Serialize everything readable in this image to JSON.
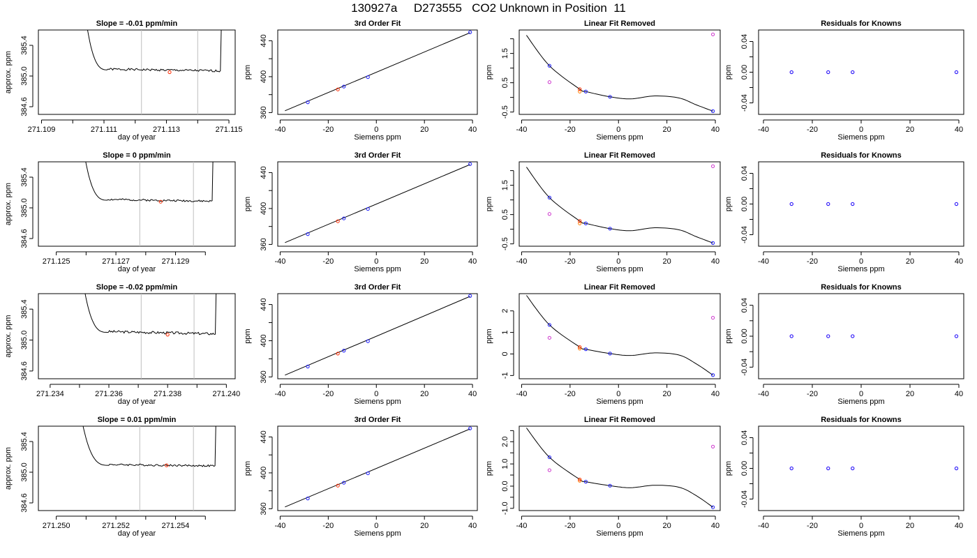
{
  "figure_title": "130927a     D273555   CO2 Unknown in Position  11",
  "colors": {
    "trace": "#000000",
    "vline": "#bebebe",
    "red": "#ff2a00",
    "blue": "#1a1aff",
    "magenta": "#cc33cc",
    "orange": "#ff8000"
  },
  "rows": [
    {
      "left": {
        "title": "Slope =  -0.01  ppm/min",
        "xlabel": "day of year",
        "ylabel": "approx. ppm",
        "xlim": [
          271.1089,
          271.1152
        ],
        "ylim": [
          384.5,
          385.6
        ],
        "xticks": [
          271.109,
          271.11,
          271.111,
          271.112,
          271.113,
          271.114,
          271.115
        ],
        "xtick_labels": [
          "271.109",
          "",
          "271.111",
          "",
          "271.113",
          "",
          "271.115"
        ],
        "yticks": [
          384.6,
          385.0,
          385.4
        ],
        "ytick_labels": [
          "384.6",
          "385.0",
          "385.4"
        ],
        "vlines": [
          271.1122,
          271.114
        ],
        "trace": {
          "start": 271.1104,
          "end": 271.1148,
          "plateau_start": 271.1106,
          "baseline": 385.08,
          "lo_value": 385.04,
          "hi_value": 385.12,
          "seed": 1
        },
        "marker": {
          "x": 271.1131,
          "y": 385.05
        }
      },
      "fit": {
        "title": "3rd Order Fit",
        "xlabel": "Siemens ppm",
        "ylabel": "ppm",
        "xlim": [
          -41,
          42
        ],
        "ylim": [
          358,
          452
        ],
        "xticks": [
          -40,
          -20,
          0,
          20,
          40
        ],
        "yticks": [
          360,
          400,
          440
        ],
        "ytick_minor": [
          380,
          420
        ],
        "line": [
          [
            -38,
            362
          ],
          [
            39,
            449
          ]
        ],
        "points_blue": [
          [
            -28.5,
            371.5
          ],
          [
            -13.5,
            389
          ],
          [
            -3.5,
            399.5
          ],
          [
            39,
            449.5
          ]
        ],
        "point_red": [
          -16,
          385.8
        ]
      },
      "lin": {
        "title": "Linear Fit Removed",
        "xlabel": "Siemens ppm",
        "ylabel": "ppm",
        "xlim": [
          -41,
          42
        ],
        "ylim": [
          -0.58,
          2.3
        ],
        "xticks": [
          -40,
          -20,
          0,
          20,
          40
        ],
        "yticks": [
          -0.5,
          0.5,
          1.5
        ],
        "ytick_minor": [
          0,
          1,
          2
        ],
        "ytick_labels": [
          "-0.5",
          "0.5",
          "1.5"
        ],
        "curve": [
          [
            -38,
            2.12
          ],
          [
            -28.5,
            1.08
          ],
          [
            -16,
            0.28
          ],
          [
            -13.5,
            0.2
          ],
          [
            -3.5,
            0.02
          ],
          [
            5,
            -0.05
          ],
          [
            15,
            0.05
          ],
          [
            25,
            -0.02
          ],
          [
            32,
            -0.25
          ],
          [
            39,
            -0.47
          ]
        ],
        "points_blue": [
          [
            -28.5,
            1.08
          ],
          [
            -13.5,
            0.2
          ],
          [
            -3.5,
            0.02
          ],
          [
            39,
            -0.47
          ]
        ],
        "points_magenta": [
          [
            -28.5,
            0.52
          ],
          [
            39,
            2.15
          ]
        ],
        "point_red": [
          -16,
          0.28
        ],
        "point_orange": [
          -16,
          0.2
        ]
      },
      "res": {
        "title": "Residuals for Knowns",
        "xlabel": "Siemens ppm",
        "ylabel": "ppm",
        "xlim": [
          -42,
          42
        ],
        "ylim": [
          -0.055,
          0.055
        ],
        "xticks": [
          -40,
          -20,
          0,
          20,
          40
        ],
        "yticks": [
          -0.04,
          0.0,
          0.04
        ],
        "ytick_minor": [
          -0.02,
          0.02
        ],
        "ytick_labels": [
          "-0.04",
          "0.00",
          "0.04"
        ],
        "points": [
          [
            -28.5,
            0
          ],
          [
            -13.5,
            0
          ],
          [
            -3.5,
            0
          ],
          [
            39,
            0
          ]
        ]
      }
    },
    {
      "left": {
        "title": "Slope =  0  ppm/min",
        "xlabel": "day of year",
        "ylabel": "approx. ppm",
        "xlim": [
          271.1244,
          271.131
        ],
        "ylim": [
          384.5,
          385.6
        ],
        "xticks": [
          271.125,
          271.126,
          271.127,
          271.128,
          271.129,
          271.13
        ],
        "xtick_labels": [
          "271.125",
          "",
          "271.127",
          "",
          "271.129",
          ""
        ],
        "yticks": [
          384.6,
          385.0,
          385.4
        ],
        "ytick_labels": [
          "384.6",
          "385.0",
          "385.4"
        ],
        "vlines": [
          271.1278,
          271.1296
        ],
        "trace": {
          "start": 271.1259,
          "end": 271.1303,
          "plateau_start": 271.1262,
          "baseline": 385.1,
          "lo_value": 385.06,
          "hi_value": 385.13,
          "seed": 2
        },
        "marker": {
          "x": 271.1285,
          "y": 385.08
        }
      },
      "fit": {
        "title": "3rd Order Fit",
        "xlabel": "Siemens ppm",
        "ylabel": "ppm",
        "xlim": [
          -41,
          42
        ],
        "ylim": [
          358,
          452
        ],
        "xticks": [
          -40,
          -20,
          0,
          20,
          40
        ],
        "yticks": [
          360,
          400,
          440
        ],
        "ytick_minor": [
          380,
          420
        ],
        "line": [
          [
            -38,
            362
          ],
          [
            39,
            449
          ]
        ],
        "points_blue": [
          [
            -28.5,
            371.5
          ],
          [
            -13.5,
            389
          ],
          [
            -3.5,
            399.5
          ],
          [
            39,
            449.5
          ]
        ],
        "point_red": [
          -16,
          385.8
        ]
      },
      "lin": {
        "title": "Linear Fit Removed",
        "xlabel": "Siemens ppm",
        "ylabel": "ppm",
        "xlim": [
          -41,
          42
        ],
        "ylim": [
          -0.58,
          2.3
        ],
        "xticks": [
          -40,
          -20,
          0,
          20,
          40
        ],
        "yticks": [
          -0.5,
          0.5,
          1.5
        ],
        "ytick_minor": [
          0,
          1,
          2
        ],
        "ytick_labels": [
          "-0.5",
          "0.5",
          "1.5"
        ],
        "curve": [
          [
            -38,
            2.12
          ],
          [
            -28.5,
            1.08
          ],
          [
            -16,
            0.28
          ],
          [
            -13.5,
            0.2
          ],
          [
            -3.5,
            0.02
          ],
          [
            5,
            -0.05
          ],
          [
            15,
            0.05
          ],
          [
            25,
            -0.02
          ],
          [
            32,
            -0.25
          ],
          [
            39,
            -0.47
          ]
        ],
        "points_blue": [
          [
            -28.5,
            1.08
          ],
          [
            -13.5,
            0.2
          ],
          [
            -3.5,
            0.02
          ],
          [
            39,
            -0.47
          ]
        ],
        "points_magenta": [
          [
            -28.5,
            0.52
          ],
          [
            39,
            2.15
          ]
        ],
        "point_red": [
          -16,
          0.28
        ],
        "point_orange": [
          -16,
          0.2
        ]
      },
      "res": {
        "title": "Residuals for Knowns",
        "xlabel": "Siemens ppm",
        "ylabel": "ppm",
        "xlim": [
          -42,
          42
        ],
        "ylim": [
          -0.055,
          0.055
        ],
        "xticks": [
          -40,
          -20,
          0,
          20,
          40
        ],
        "yticks": [
          -0.04,
          0.0,
          0.04
        ],
        "ytick_minor": [
          -0.02,
          0.02
        ],
        "ytick_labels": [
          "-0.04",
          "0.00",
          "0.04"
        ],
        "points": [
          [
            -28.5,
            0
          ],
          [
            -13.5,
            0
          ],
          [
            -3.5,
            0
          ],
          [
            39,
            0
          ]
        ]
      }
    },
    {
      "left": {
        "title": "Slope =  -0.02  ppm/min",
        "xlabel": "day of year",
        "ylabel": "approx. ppm",
        "xlim": [
          271.2336,
          271.2403
        ],
        "ylim": [
          384.5,
          385.6
        ],
        "xticks": [
          271.234,
          271.235,
          271.236,
          271.237,
          271.238,
          271.239,
          271.24
        ],
        "xtick_labels": [
          "271.234",
          "",
          "271.236",
          "",
          "271.238",
          "",
          "271.240"
        ],
        "yticks": [
          384.6,
          385.0,
          385.4
        ],
        "ytick_labels": [
          "384.6",
          "385.0",
          "385.4"
        ],
        "vlines": [
          271.2371,
          271.2389
        ],
        "trace": {
          "start": 271.2351,
          "end": 271.2397,
          "plateau_start": 271.2354,
          "baseline": 385.1,
          "lo_value": 385.05,
          "hi_value": 385.14,
          "seed": 3
        },
        "marker": {
          "x": 271.238,
          "y": 385.07
        }
      },
      "fit": {
        "title": "3rd Order Fit",
        "xlabel": "Siemens ppm",
        "ylabel": "ppm",
        "xlim": [
          -41,
          42
        ],
        "ylim": [
          358,
          452
        ],
        "xticks": [
          -40,
          -20,
          0,
          20,
          40
        ],
        "yticks": [
          360,
          400,
          440
        ],
        "ytick_minor": [
          380,
          420
        ],
        "line": [
          [
            -38,
            362
          ],
          [
            39,
            449
          ]
        ],
        "points_blue": [
          [
            -28.5,
            371.5
          ],
          [
            -13.5,
            389
          ],
          [
            -3.5,
            399.5
          ],
          [
            39,
            449.5
          ]
        ],
        "point_red": [
          -16,
          385.8
        ]
      },
      "lin": {
        "title": "Linear Fit Removed",
        "xlabel": "Siemens ppm",
        "ylabel": "ppm",
        "xlim": [
          -41,
          42
        ],
        "ylim": [
          -1.15,
          2.8
        ],
        "xticks": [
          -40,
          -20,
          0,
          20,
          40
        ],
        "yticks": [
          -1,
          0,
          1,
          2
        ],
        "ytick_minor": [],
        "ytick_labels": [
          "-1",
          "0",
          "1",
          "2"
        ],
        "curve": [
          [
            -38,
            2.72
          ],
          [
            -28.5,
            1.35
          ],
          [
            -16,
            0.32
          ],
          [
            -13.5,
            0.22
          ],
          [
            -3.5,
            0.02
          ],
          [
            5,
            -0.07
          ],
          [
            15,
            0.05
          ],
          [
            25,
            -0.05
          ],
          [
            32,
            -0.45
          ],
          [
            39,
            -0.98
          ]
        ],
        "points_blue": [
          [
            -28.5,
            1.35
          ],
          [
            -13.5,
            0.22
          ],
          [
            -3.5,
            0.02
          ],
          [
            39,
            -0.98
          ]
        ],
        "points_magenta": [
          [
            -28.5,
            0.75
          ],
          [
            39,
            1.68
          ]
        ],
        "point_red": [
          -16,
          0.32
        ],
        "point_orange": [
          -16,
          0.25
        ]
      },
      "res": {
        "title": "Residuals for Knowns",
        "xlabel": "Siemens ppm",
        "ylabel": "ppm",
        "xlim": [
          -42,
          42
        ],
        "ylim": [
          -0.055,
          0.055
        ],
        "xticks": [
          -40,
          -20,
          0,
          20,
          40
        ],
        "yticks": [
          -0.04,
          0.0,
          0.04
        ],
        "ytick_minor": [
          -0.02,
          0.02
        ],
        "ytick_labels": [
          "-0.04",
          "0.00",
          "0.04"
        ],
        "points": [
          [
            -28.5,
            0
          ],
          [
            -13.5,
            0
          ],
          [
            -3.5,
            0
          ],
          [
            39,
            0
          ]
        ]
      }
    },
    {
      "left": {
        "title": "Slope =  0.01  ppm/min",
        "xlabel": "day of year",
        "ylabel": "approx. ppm",
        "xlim": [
          271.2494,
          271.256
        ],
        "ylim": [
          384.5,
          385.6
        ],
        "xticks": [
          271.25,
          271.251,
          271.252,
          271.253,
          271.254,
          271.255
        ],
        "xtick_labels": [
          "271.250",
          "",
          "271.252",
          "",
          "271.254",
          ""
        ],
        "yticks": [
          384.6,
          385.0,
          385.4
        ],
        "ytick_labels": [
          "384.6",
          "385.0",
          "385.4"
        ],
        "vlines": [
          271.2528,
          271.2546
        ],
        "trace": {
          "start": 271.2508,
          "end": 271.2554,
          "plateau_start": 271.2512,
          "baseline": 385.09,
          "lo_value": 385.06,
          "hi_value": 385.13,
          "seed": 4
        },
        "marker": {
          "x": 271.2537,
          "y": 385.09
        }
      },
      "fit": {
        "title": "3rd Order Fit",
        "xlabel": "Siemens ppm",
        "ylabel": "ppm",
        "xlim": [
          -41,
          42
        ],
        "ylim": [
          358,
          452
        ],
        "xticks": [
          -40,
          -20,
          0,
          20,
          40
        ],
        "yticks": [
          360,
          400,
          440
        ],
        "ytick_minor": [
          380,
          420
        ],
        "line": [
          [
            -38,
            362
          ],
          [
            39,
            449
          ]
        ],
        "points_blue": [
          [
            -28.5,
            371.5
          ],
          [
            -13.5,
            389
          ],
          [
            -3.5,
            399.5
          ],
          [
            39,
            449.5
          ]
        ],
        "point_red": [
          -16,
          385.8
        ]
      },
      "lin": {
        "title": "Linear Fit Removed",
        "xlabel": "Siemens ppm",
        "ylabel": "ppm",
        "xlim": [
          -41,
          42
        ],
        "ylim": [
          -1.1,
          2.7
        ],
        "xticks": [
          -40,
          -20,
          0,
          20,
          40
        ],
        "yticks": [
          -1.0,
          0.0,
          1.0,
          2.0
        ],
        "ytick_minor": [
          -0.5,
          0.5,
          1.5,
          2.5
        ],
        "ytick_labels": [
          "-1.0",
          "0.0",
          "1.0",
          "2.0"
        ],
        "curve": [
          [
            -38,
            2.62
          ],
          [
            -28.5,
            1.3
          ],
          [
            -16,
            0.3
          ],
          [
            -13.5,
            0.2
          ],
          [
            -3.5,
            0.02
          ],
          [
            5,
            -0.07
          ],
          [
            15,
            0.04
          ],
          [
            25,
            -0.05
          ],
          [
            32,
            -0.42
          ],
          [
            39,
            -0.95
          ]
        ],
        "points_blue": [
          [
            -28.5,
            1.3
          ],
          [
            -13.5,
            0.2
          ],
          [
            -3.5,
            0.02
          ],
          [
            39,
            -0.95
          ]
        ],
        "points_magenta": [
          [
            -28.5,
            0.72
          ],
          [
            39,
            1.78
          ]
        ],
        "point_red": [
          -16,
          0.3
        ],
        "point_orange": [
          -16,
          0.24
        ]
      },
      "res": {
        "title": "Residuals for Knowns",
        "xlabel": "Siemens ppm",
        "ylabel": "ppm",
        "xlim": [
          -42,
          42
        ],
        "ylim": [
          -0.055,
          0.055
        ],
        "xticks": [
          -40,
          -20,
          0,
          20,
          40
        ],
        "yticks": [
          -0.04,
          0.0,
          0.04
        ],
        "ytick_minor": [
          -0.02,
          0.02
        ],
        "ytick_labels": [
          "-0.04",
          "0.00",
          "0.04"
        ],
        "points": [
          [
            -28.5,
            0
          ],
          [
            -13.5,
            0
          ],
          [
            -3.5,
            0
          ],
          [
            39,
            0
          ]
        ]
      }
    }
  ]
}
